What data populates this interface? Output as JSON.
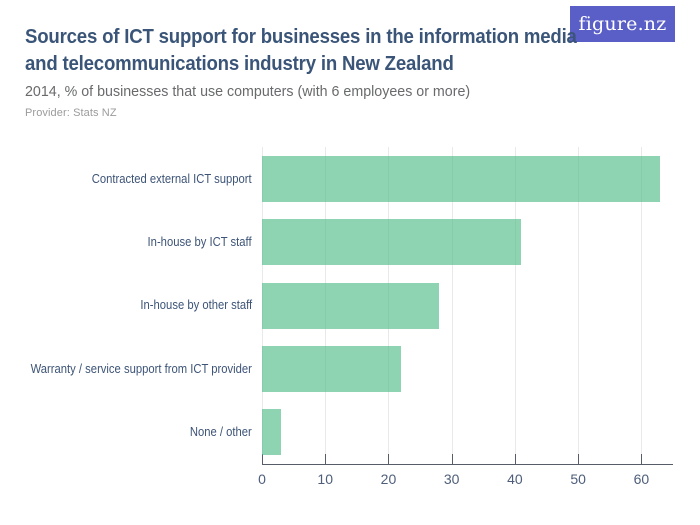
{
  "logo": {
    "text": "figure.nz",
    "bg_color": "#5a5fc8",
    "text_color": "#ffffff"
  },
  "header": {
    "title": "Sources of ICT support for businesses in the information media and telecommunications industry in New Zealand",
    "title_lines": [
      "Sources of ICT support for businesses in the information media",
      "and telecommunications industry in New Zealand"
    ],
    "subtitle": "2014, % of businesses that use computers (with 6 employees or more)",
    "provider": "Provider: Stats NZ"
  },
  "chart_data": {
    "type": "bar",
    "orientation": "horizontal",
    "title": "Sources of ICT support for businesses in the information media and telecommunications industry in New Zealand",
    "subtitle": "2014, % of businesses that use computers (with 6 employees or more)",
    "xlabel": "",
    "ylabel": "",
    "categories": [
      "Contracted external ICT support",
      "In-house by ICT staff",
      "In-house by other staff",
      "Warranty / service support from ICT provider",
      "None / other"
    ],
    "values": [
      63,
      41,
      28,
      22,
      3
    ],
    "unit": "%",
    "xlim": [
      0,
      65
    ],
    "xticks": [
      0,
      10,
      20,
      30,
      40,
      50,
      60
    ],
    "grid": true,
    "legend": "none",
    "bar_color": "rgba(75,185,130,0.62)",
    "bar_color_flat": "#93d5b4",
    "gridline_color": "#e9e9e9",
    "axis_color": "#565c68",
    "tick_label_color": "#4e5e7a",
    "category_label_color": "#3d5477"
  }
}
